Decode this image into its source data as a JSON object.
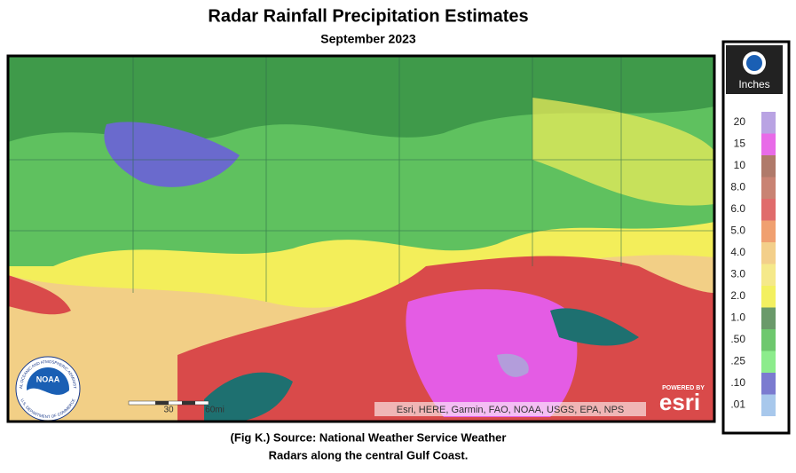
{
  "header": {
    "title": "Radar Rainfall Precipitation Estimates",
    "subtitle": "September 2023"
  },
  "map": {
    "attribution": "Esri, HERE, Garmin, FAO, NOAA, USGS, EPA, NPS",
    "scale_bar": {
      "labels": [
        "30",
        "60mi"
      ]
    },
    "noaa_logo": {
      "text": "NOAA",
      "ring_top": "NATIONAL OCEANIC AND ATMOSPHERIC ADMINISTRATION",
      "ring_bottom": "U.S. DEPARTMENT OF COMMERCE"
    },
    "esri_logo": {
      "powered_by": "POWERED BY",
      "text": "esri"
    }
  },
  "legend": {
    "title": "Inches",
    "items": [
      {
        "label": "20",
        "color": "#b9a3e3"
      },
      {
        "label": "15",
        "color": "#e86be8"
      },
      {
        "label": "10",
        "color": "#b07a6a"
      },
      {
        "label": "8.0",
        "color": "#c98373"
      },
      {
        "label": "6.0",
        "color": "#e06c6c"
      },
      {
        "label": "5.0",
        "color": "#f0a070"
      },
      {
        "label": "4.0",
        "color": "#f3cf8a"
      },
      {
        "label": "3.0",
        "color": "#f5e98a"
      },
      {
        "label": "2.0",
        "color": "#f3f060"
      },
      {
        "label": "1.0",
        "color": "#6a9a6a"
      },
      {
        "label": ".50",
        "color": "#6ec86e"
      },
      {
        "label": ".25",
        "color": "#8cec8c"
      },
      {
        "label": ".10",
        "color": "#7b7bd0"
      },
      {
        "label": ".01",
        "color": "#a8c8ec"
      }
    ]
  },
  "caption": {
    "lines": [
      "(Fig K.) Source: National Weather Service Weather",
      "Radars along the central Gulf Coast."
    ]
  }
}
